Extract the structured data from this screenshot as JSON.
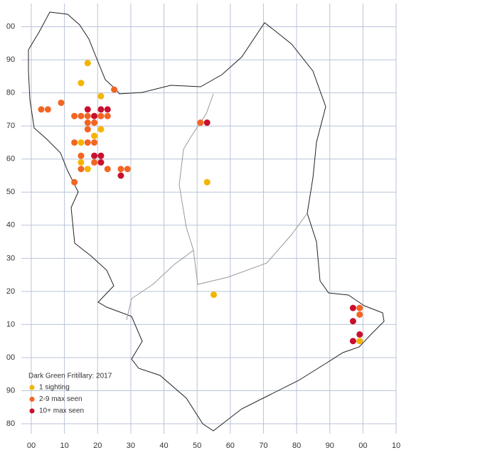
{
  "chart_data": {
    "type": "scatter",
    "legend_title": "Dark Green Fritillary:  2017",
    "grid": true,
    "xlim": [
      -3,
      110
    ],
    "ylim": [
      -23,
      107
    ],
    "xticks": [
      {
        "value": 0,
        "label": "00"
      },
      10,
      20,
      30,
      40,
      50,
      60,
      70,
      80,
      90,
      {
        "value": 100,
        "label": "00"
      },
      {
        "value": 110,
        "label": "10"
      }
    ],
    "yticks": [
      {
        "value": 100,
        "label": "00"
      },
      90,
      80,
      70,
      60,
      50,
      40,
      30,
      20,
      10,
      {
        "value": 0,
        "label": "00"
      },
      {
        "value": -10,
        "label": "90"
      },
      {
        "value": -20,
        "label": "80"
      }
    ],
    "series": [
      {
        "name": "1 sighting",
        "color": "#f5b400",
        "x": [
          17,
          15,
          21,
          21,
          19,
          15,
          15,
          17,
          53,
          55,
          99
        ],
        "y": [
          89,
          83,
          79,
          69,
          67,
          65,
          59,
          57,
          53,
          19,
          5
        ]
      },
      {
        "name": "2-9 max seen",
        "color": "#f26522",
        "x": [
          25,
          9,
          3,
          5,
          13,
          15,
          17,
          21,
          23,
          17,
          19,
          17,
          13,
          17,
          19,
          15,
          19,
          15,
          23,
          27,
          29,
          13,
          51,
          99,
          99
        ],
        "y": [
          81,
          77,
          75,
          75,
          73,
          73,
          73,
          73,
          73,
          71,
          71,
          69,
          65,
          65,
          65,
          61,
          59,
          57,
          57,
          57,
          57,
          53,
          71,
          15,
          13
        ]
      },
      {
        "name": "10+ max seen",
        "color": "#c8102e",
        "x": [
          17,
          21,
          23,
          19,
          19,
          21,
          21,
          27,
          53,
          97,
          97,
          99,
          97
        ],
        "y": [
          75,
          75,
          75,
          73,
          61,
          61,
          59,
          55,
          71,
          15,
          11,
          7,
          5
        ]
      }
    ]
  }
}
